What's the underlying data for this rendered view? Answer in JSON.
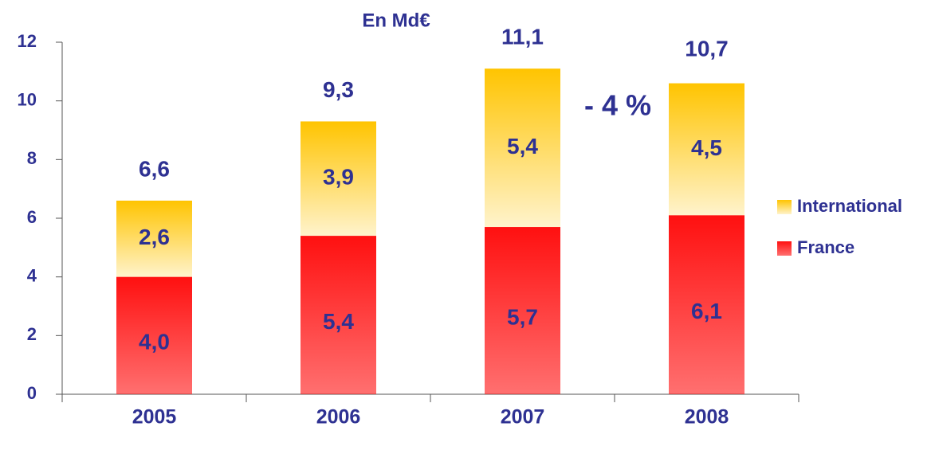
{
  "chart_data": {
    "type": "stacked_bar",
    "title": "En Md€",
    "categories": [
      "2005",
      "2006",
      "2007",
      "2008"
    ],
    "series": [
      {
        "name": "France",
        "color": "#ff1010",
        "values": [
          4.0,
          5.4,
          5.7,
          6.1
        ],
        "value_labels": [
          "4,0",
          "5,4",
          "5,7",
          "6,1"
        ]
      },
      {
        "name": "International",
        "color": "#ffc400",
        "values": [
          2.6,
          3.9,
          5.4,
          4.5
        ],
        "value_labels": [
          "2,6",
          "3,9",
          "5,4",
          "4,5"
        ]
      }
    ],
    "totals": [
      6.6,
      9.3,
      11.1,
      10.7
    ],
    "totals_labels": [
      "6,6",
      "9,3",
      "11,1",
      "10,7"
    ],
    "annotation": "- 4 %",
    "ylim": [
      0,
      12
    ],
    "yticks": [
      0,
      2,
      4,
      6,
      8,
      10,
      12
    ]
  }
}
